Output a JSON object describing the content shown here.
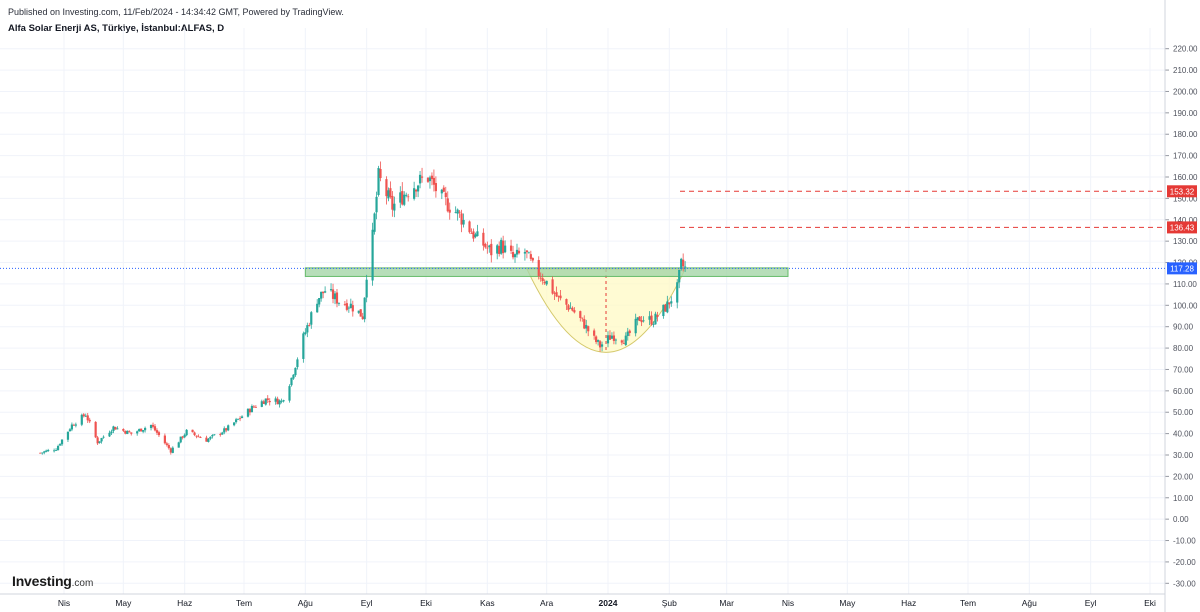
{
  "header": {
    "published": "Published on Investing.com, 11/Feb/2024 - 14:34:42 GMT, Powered by TradingView.",
    "title": "Alfa Solar Enerji AS, Türkiye, İstanbul:ALFAS, D"
  },
  "brand": {
    "name": "Investing",
    "suffix": ".com"
  },
  "colors": {
    "up": "#26a69a",
    "down": "#ef5350",
    "grid": "#f0f3fa",
    "price_line": "#2962ff",
    "resistance_zone": "#a5d6a7",
    "cup_fill": "#fff9c4",
    "target_line": "#e53935"
  },
  "chart_data": {
    "type": "candlestick",
    "ylim": [
      -35,
      225
    ],
    "y_ticks": [
      220,
      210,
      200,
      190,
      180,
      170,
      160,
      150,
      140,
      130,
      120,
      110,
      100,
      90,
      80,
      70,
      60,
      50,
      40,
      30,
      20,
      10,
      0,
      -10,
      -20,
      -30
    ],
    "y_tick_labels": [
      "220.00",
      "210.00",
      "200.00",
      "190.00",
      "180.00",
      "170.00",
      "160.00",
      "150.00",
      "140.00",
      "130.00",
      "120.00",
      "110.00",
      "100.00",
      "90.00",
      "80.00",
      "70.00",
      "60.00",
      "50.00",
      "40.00",
      "30.00",
      "20.00",
      "10.00",
      "0.00",
      "-10.00",
      "-20.00",
      "-30.00"
    ],
    "x_labels": [
      "Nis",
      "May",
      "Haz",
      "Tem",
      "Ağu",
      "Eyl",
      "Eki",
      "Kas",
      "Ara",
      "2024",
      "Şub",
      "Mar",
      "Nis",
      "May",
      "Haz",
      "Tem",
      "Ağu",
      "Eyl",
      "Eki"
    ],
    "x_label_months": [
      "2023-04",
      "2023-05",
      "2023-06",
      "2023-07",
      "2023-08",
      "2023-09",
      "2023-10",
      "2023-11",
      "2023-12",
      "2024-01",
      "2024-02",
      "2024-03",
      "2024-04",
      "2024-05",
      "2024-06",
      "2024-07",
      "2024-08",
      "2024-09",
      "2024-10"
    ],
    "bold_labels": [
      "2024"
    ],
    "last_price": 117.28,
    "last_price_label": "117.28",
    "targets": [
      {
        "value": 153.32,
        "label": "153.32"
      },
      {
        "value": 136.43,
        "label": "136.43"
      }
    ],
    "resistance_zone": {
      "low": 113.5,
      "high": 117.5,
      "from": "2023-08-01",
      "to": "2024-04-01"
    },
    "cup_pattern": {
      "from": "2023-11-21",
      "to": "2024-02-09",
      "rim": 117,
      "bottom": 78
    },
    "series_close_anchors": [
      [
        "2023-03-20",
        31
      ],
      [
        "2023-03-28",
        33
      ],
      [
        "2023-04-05",
        44
      ],
      [
        "2023-04-12",
        49
      ],
      [
        "2023-04-18",
        36
      ],
      [
        "2023-04-26",
        43
      ],
      [
        "2023-05-05",
        40
      ],
      [
        "2023-05-15",
        44
      ],
      [
        "2023-05-25",
        32
      ],
      [
        "2023-06-02",
        41
      ],
      [
        "2023-06-12",
        37
      ],
      [
        "2023-06-22",
        42
      ],
      [
        "2023-07-05",
        52
      ],
      [
        "2023-07-12",
        56
      ],
      [
        "2023-07-20",
        55
      ],
      [
        "2023-07-25",
        66
      ],
      [
        "2023-07-31",
        85
      ],
      [
        "2023-08-07",
        103
      ],
      [
        "2023-08-11",
        107
      ],
      [
        "2023-08-18",
        102
      ],
      [
        "2023-08-24",
        100
      ],
      [
        "2023-08-30",
        95
      ],
      [
        "2023-09-01",
        115
      ],
      [
        "2023-09-04",
        132
      ],
      [
        "2023-09-07",
        160
      ],
      [
        "2023-09-14",
        146
      ],
      [
        "2023-09-20",
        152
      ],
      [
        "2023-09-26",
        157
      ],
      [
        "2023-10-02",
        160
      ],
      [
        "2023-10-09",
        150
      ],
      [
        "2023-10-18",
        142
      ],
      [
        "2023-10-26",
        132
      ],
      [
        "2023-11-03",
        125
      ],
      [
        "2023-11-08",
        128
      ],
      [
        "2023-11-14",
        122
      ],
      [
        "2023-11-20",
        125
      ],
      [
        "2023-11-24",
        118
      ],
      [
        "2023-11-30",
        112
      ],
      [
        "2023-12-07",
        103
      ],
      [
        "2023-12-14",
        98
      ],
      [
        "2023-12-20",
        91
      ],
      [
        "2023-12-25",
        84
      ],
      [
        "2023-12-28",
        81
      ],
      [
        "2024-01-03",
        86
      ],
      [
        "2024-01-10",
        84
      ],
      [
        "2024-01-17",
        94
      ],
      [
        "2024-01-24",
        93
      ],
      [
        "2024-01-31",
        100
      ],
      [
        "2024-02-05",
        108
      ],
      [
        "2024-02-07",
        119
      ],
      [
        "2024-02-09",
        117.28
      ]
    ]
  }
}
